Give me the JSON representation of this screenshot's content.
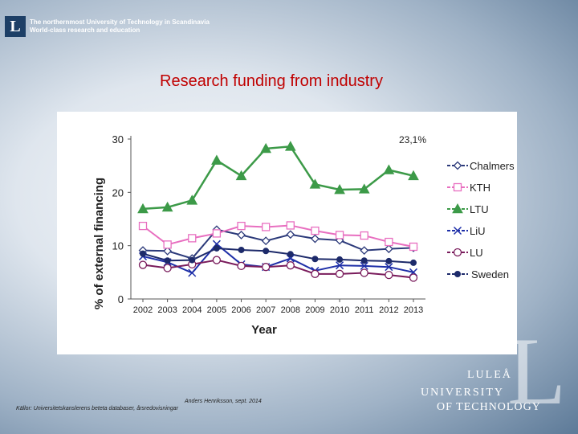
{
  "header": {
    "logo_letter": "L",
    "line1": "The northernmost University of Technology in Scandinavia",
    "line2": "World-class research and education"
  },
  "slide": {
    "title": "Research funding from industry"
  },
  "chart_data": {
    "type": "line",
    "title": "",
    "annotation": "23,1%",
    "xlabel": "Year",
    "ylabel": "% of external financing",
    "x": [
      2002,
      2003,
      2004,
      2005,
      2006,
      2007,
      2008,
      2009,
      2010,
      2011,
      2012,
      2013
    ],
    "ylim": [
      0,
      30
    ],
    "yticks": [
      0,
      10,
      20,
      30
    ],
    "grid": false,
    "legend_position": "right",
    "series": [
      {
        "name": "Chalmers",
        "color": "#2c3a7a",
        "marker": "diamond-open",
        "values": [
          9.1,
          9.0,
          7.6,
          13.0,
          12.0,
          10.9,
          12.1,
          11.3,
          11.0,
          9.1,
          9.4,
          9.6
        ]
      },
      {
        "name": "KTH",
        "color": "#e86fc0",
        "marker": "square-open",
        "values": [
          13.7,
          10.2,
          11.4,
          12.3,
          13.7,
          13.5,
          13.8,
          12.8,
          12.0,
          11.9,
          10.7,
          9.8
        ]
      },
      {
        "name": "LTU",
        "color": "#3c9a48",
        "marker": "triangle",
        "values": [
          16.9,
          17.2,
          18.5,
          26.0,
          23.1,
          28.2,
          28.6,
          21.5,
          20.5,
          20.6,
          24.2,
          23.1
        ]
      },
      {
        "name": "LiU",
        "color": "#1e2fa8",
        "marker": "x",
        "values": [
          8.0,
          6.9,
          4.9,
          10.3,
          6.5,
          6.0,
          7.6,
          5.3,
          6.3,
          6.2,
          6.0,
          5.0
        ]
      },
      {
        "name": "LU",
        "color": "#7a1c5c",
        "marker": "circle-open",
        "values": [
          6.4,
          5.8,
          6.5,
          7.3,
          6.2,
          6.0,
          6.3,
          4.7,
          4.7,
          4.9,
          4.5,
          4.0
        ]
      },
      {
        "name": "Sweden",
        "color": "#1d2a6a",
        "marker": "circle",
        "values": [
          8.5,
          7.2,
          7.3,
          9.5,
          9.2,
          9.0,
          8.4,
          7.5,
          7.4,
          7.2,
          7.1,
          6.8
        ]
      }
    ]
  },
  "footer": {
    "line1": "Anders Henriksson, sept. 2014",
    "line2": "Källor: Universitetskanslerens beteta databaser, årsredovisningar"
  },
  "university": {
    "name1": "LULEÅ",
    "name2": "UNIVERSITY",
    "name3": "OF TECHNOLOGY",
    "letter": "L"
  }
}
